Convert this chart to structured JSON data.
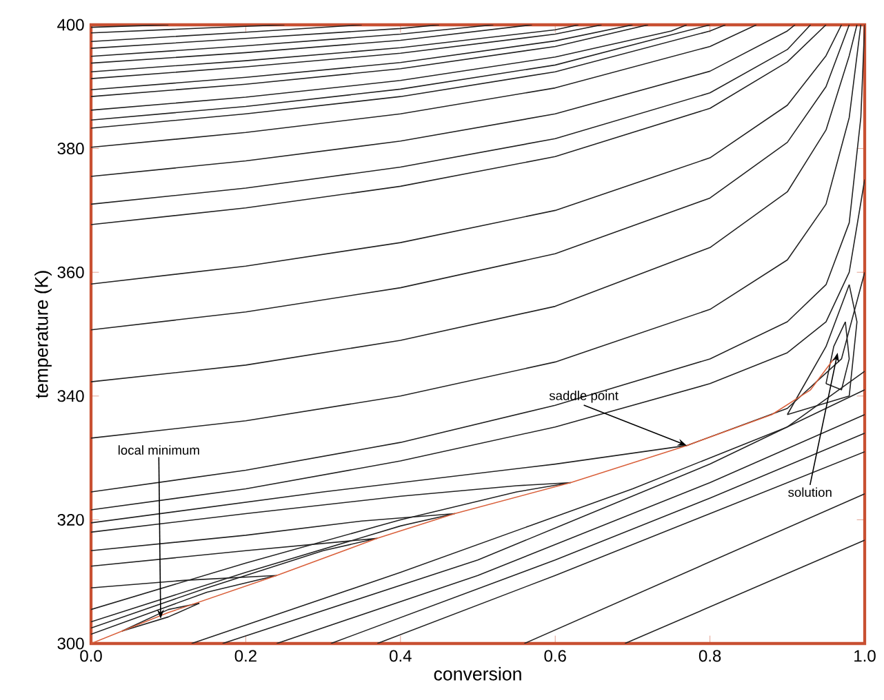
{
  "chart_data": {
    "type": "line",
    "xlabel": "conversion",
    "ylabel": "temperature (K)",
    "xlim": [
      0,
      1
    ],
    "ylim": [
      300,
      400
    ],
    "xticks": [
      {
        "value": 0,
        "label": "0.0"
      },
      {
        "value": 0.2,
        "label": "0.2"
      },
      {
        "value": 0.4,
        "label": "0.4"
      },
      {
        "value": 0.6,
        "label": "0.6"
      },
      {
        "value": 0.8,
        "label": "0.8"
      },
      {
        "value": 1,
        "label": "1.0"
      }
    ],
    "yticks": [
      300,
      320,
      340,
      360,
      380,
      400
    ],
    "grid": false,
    "marker": "none",
    "line_style": "solid",
    "annotations": [
      {
        "text": "local minimum",
        "x": 0.09,
        "y": 304
      },
      {
        "text": "saddle point",
        "x": 0.77,
        "y": 332
      },
      {
        "text": "solution",
        "x": 0.965,
        "y": 347
      }
    ],
    "series": [
      {
        "color": "#222222",
        "x": [
          0,
          0.1
        ],
        "values": [
          399.6,
          400
        ]
      },
      {
        "color": "#222222",
        "x": [
          0,
          0.15,
          0.25
        ],
        "values": [
          398.7,
          399.5,
          400
        ]
      },
      {
        "color": "#222222",
        "x": [
          0,
          0.2,
          0.35
        ],
        "values": [
          397.3,
          398.8,
          400
        ]
      },
      {
        "color": "#222222",
        "x": [
          0,
          0.2,
          0.4,
          0.45
        ],
        "values": [
          396.2,
          397.8,
          399.4,
          400
        ]
      },
      {
        "color": "#222222",
        "x": [
          0,
          0.2,
          0.4,
          0.52
        ],
        "values": [
          394.9,
          396.6,
          398.5,
          400
        ]
      },
      {
        "color": "#222222",
        "x": [
          0,
          0.2,
          0.4,
          0.57
        ],
        "values": [
          393.8,
          395.5,
          397.5,
          400
        ]
      },
      {
        "color": "#222222",
        "x": [
          0,
          0.2,
          0.4,
          0.6,
          0.63
        ],
        "values": [
          392.4,
          394.2,
          396.3,
          399.2,
          400
        ]
      },
      {
        "color": "#222222",
        "x": [
          0,
          0.2,
          0.4,
          0.6,
          0.66
        ],
        "values": [
          391.3,
          393.2,
          395.4,
          398.5,
          400
        ]
      },
      {
        "color": "#222222",
        "x": [
          0,
          0.2,
          0.4,
          0.6,
          0.7
        ],
        "values": [
          389.5,
          391.5,
          393.9,
          397.4,
          400
        ]
      },
      {
        "color": "#222222",
        "x": [
          0,
          0.2,
          0.4,
          0.6,
          0.72
        ],
        "values": [
          388.4,
          390.4,
          392.9,
          396.5,
          400
        ]
      },
      {
        "color": "#222222",
        "x": [
          0,
          0.2,
          0.4,
          0.6,
          0.75,
          0.77
        ],
        "values": [
          386.2,
          388.3,
          391,
          394.8,
          399,
          400
        ]
      },
      {
        "color": "#222222",
        "x": [
          0,
          0.2,
          0.4,
          0.6,
          0.8
        ],
        "values": [
          384.6,
          386.8,
          389.6,
          393.5,
          400
        ]
      },
      {
        "color": "#222222",
        "x": [
          0,
          0.2,
          0.4,
          0.6,
          0.8,
          0.82
        ],
        "values": [
          383.3,
          385.6,
          388.4,
          392.4,
          399,
          400
        ]
      },
      {
        "color": "#222222",
        "x": [
          0,
          0.2,
          0.4,
          0.6,
          0.8,
          0.86
        ],
        "values": [
          380.2,
          382.6,
          385.6,
          389.8,
          396.5,
          400
        ]
      },
      {
        "color": "#222222",
        "x": [
          0,
          0.2,
          0.4,
          0.6,
          0.8,
          0.9,
          0.91
        ],
        "values": [
          375.5,
          378,
          381.2,
          385.6,
          392.5,
          399,
          400
        ]
      },
      {
        "color": "#222222",
        "x": [
          0,
          0.2,
          0.4,
          0.6,
          0.8,
          0.9,
          0.93
        ],
        "values": [
          371,
          373.6,
          377,
          381.6,
          389,
          396,
          400
        ]
      },
      {
        "color": "#222222",
        "x": [
          0,
          0.2,
          0.4,
          0.6,
          0.8,
          0.9,
          0.95
        ],
        "values": [
          367.7,
          370.4,
          373.9,
          378.7,
          386.5,
          394,
          400
        ]
      },
      {
        "color": "#222222",
        "x": [
          0,
          0.2,
          0.4,
          0.6,
          0.8,
          0.9,
          0.95,
          0.97
        ],
        "values": [
          358.1,
          361,
          364.8,
          370,
          378.5,
          387,
          395,
          400
        ]
      },
      {
        "color": "#222222",
        "x": [
          0,
          0.2,
          0.4,
          0.6,
          0.8,
          0.9,
          0.95,
          0.98
        ],
        "values": [
          350.7,
          353.6,
          357.5,
          363,
          372,
          381,
          390,
          400
        ]
      },
      {
        "color": "#222222",
        "x": [
          0,
          0.2,
          0.4,
          0.6,
          0.8,
          0.9,
          0.95,
          0.98,
          0.99
        ],
        "values": [
          342.3,
          345,
          349,
          354.5,
          364,
          373,
          383,
          395,
          400
        ]
      },
      {
        "color": "#222222",
        "x": [
          0,
          0.2,
          0.4,
          0.6,
          0.8,
          0.9,
          0.95,
          0.98,
          0.995
        ],
        "values": [
          333.2,
          336,
          340,
          345.5,
          354,
          362,
          371,
          385,
          400
        ]
      },
      {
        "color": "#222222",
        "x": [
          0,
          0.2,
          0.4,
          0.6,
          0.8,
          0.9,
          0.95,
          0.98,
          0.995,
          1
        ],
        "values": [
          324.5,
          328,
          332.5,
          338.5,
          346,
          352,
          358,
          368,
          385,
          400
        ]
      },
      {
        "color": "#222222",
        "x": [
          0,
          0.2,
          0.4,
          0.6,
          0.8,
          0.9,
          0.95,
          0.98,
          1
        ],
        "values": [
          321.6,
          325,
          329.5,
          335,
          342,
          347,
          352,
          360,
          375
        ]
      },
      {
        "color": "#222222",
        "x": [
          0,
          0.3,
          0.6,
          0.77,
          0.9,
          0.97,
          1
        ],
        "values": [
          319.5,
          324.5,
          329,
          332,
          338,
          346,
          360
        ]
      },
      {
        "color": "#222222",
        "x": [
          0,
          0.2,
          0.4,
          0.55,
          0.62,
          0.55,
          0.4,
          0.2,
          0
        ],
        "values": [
          318,
          321,
          323.8,
          325.5,
          326,
          324.5,
          320,
          313,
          305.5
        ]
      },
      {
        "color": "#222222",
        "x": [
          0,
          0.2,
          0.35,
          0.47,
          0.4,
          0.2,
          0
        ],
        "values": [
          315,
          317.5,
          319.8,
          321,
          319,
          311.5,
          303.5
        ]
      },
      {
        "color": "#222222",
        "x": [
          0,
          0.2,
          0.37,
          0.3,
          0.15,
          0
        ],
        "values": [
          312.5,
          315,
          317,
          315,
          309,
          302.5
        ]
      },
      {
        "color": "#222222",
        "x": [
          0,
          0.12,
          0.24,
          0.15,
          0
        ],
        "values": [
          309,
          310.2,
          311,
          308.3,
          301.5
        ]
      },
      {
        "color": "#222222",
        "x": [
          0.04,
          0.1,
          0.14
        ],
        "values": [
          302,
          305.5,
          306.5
        ]
      },
      {
        "color": "#222222",
        "x": [
          0.04,
          0.1,
          0.14
        ],
        "values": [
          302,
          304.3,
          306.5
        ]
      },
      {
        "color": "#222222",
        "x": [
          0.69,
          1
        ],
        "values": [
          300,
          316.7
        ]
      },
      {
        "color": "#222222",
        "x": [
          0.56,
          1
        ],
        "values": [
          300,
          324.2
        ]
      },
      {
        "color": "#222222",
        "x": [
          0.37,
          0.6,
          0.8,
          1
        ],
        "values": [
          300,
          311,
          321,
          331
        ]
      },
      {
        "color": "#222222",
        "x": [
          0.31,
          0.6,
          0.8,
          1
        ],
        "values": [
          300,
          313.5,
          323.5,
          334
        ]
      },
      {
        "color": "#222222",
        "x": [
          0.24,
          0.5,
          0.8,
          1
        ],
        "values": [
          300,
          311,
          326,
          337
        ]
      },
      {
        "color": "#222222",
        "x": [
          0.17,
          0.5,
          0.8,
          1
        ],
        "values": [
          300,
          313.5,
          329,
          341
        ]
      },
      {
        "color": "#222222",
        "x": [
          0.13,
          0.4,
          0.7,
          0.9,
          1
        ],
        "values": [
          300,
          311.5,
          325,
          335,
          344
        ]
      },
      {
        "color": "#222222",
        "x": [
          0.95,
          0.96,
          0.975
        ],
        "values": [
          342,
          348,
          352
        ]
      },
      {
        "color": "#222222",
        "x": [
          0.95,
          0.97,
          0.98,
          0.975
        ],
        "values": [
          342,
          341,
          346,
          352
        ]
      },
      {
        "color": "#222222",
        "x": [
          0.9,
          0.95,
          0.98
        ],
        "values": [
          337,
          348,
          358
        ]
      },
      {
        "color": "#222222",
        "x": [
          0.9,
          0.98,
          0.99,
          0.98
        ],
        "values": [
          337,
          340,
          352,
          358
        ]
      },
      {
        "color": "#d9603b",
        "x": [
          0,
          0.1,
          0.24,
          0.37,
          0.47,
          0.62,
          0.77,
          0.88,
          0.93,
          0.96
        ],
        "values": [
          300,
          305,
          311,
          317,
          321,
          326,
          332,
          337,
          341,
          346
        ]
      }
    ]
  }
}
